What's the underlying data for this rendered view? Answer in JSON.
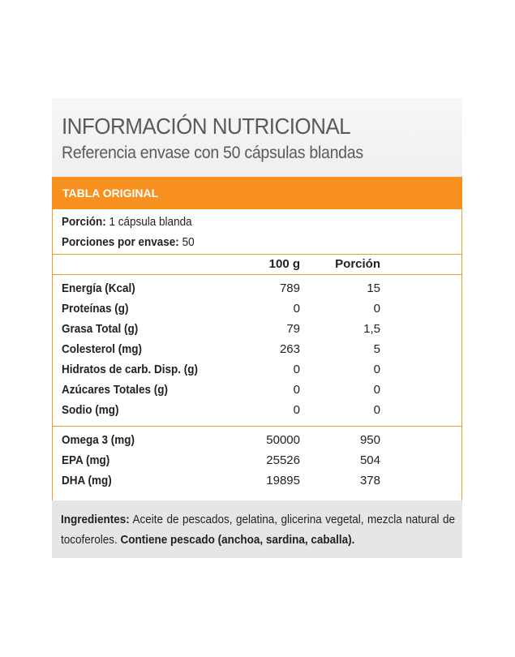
{
  "header": {
    "title": "INFORMACIÓN NUTRICIONAL",
    "subtitle": "Referencia envase con 50 cápsulas blandas"
  },
  "table": {
    "tab_label": "TABLA ORIGINAL",
    "portion_label": "Porción:",
    "portion_value": " 1 cápsula blanda",
    "servings_label": "Porciones por envase:",
    "servings_value": " 50",
    "col_100g": "100 g",
    "col_portion": "Porción",
    "rows": [
      {
        "name": "Energía (Kcal)",
        "v100": "789",
        "vpor": "15"
      },
      {
        "name": "Proteínas (g)",
        "v100": "0",
        "vpor": "0"
      },
      {
        "name": "Grasa Total (g)",
        "v100": "79",
        "vpor": "1,5"
      },
      {
        "name": "Colesterol (mg)",
        "v100": "263",
        "vpor": "5"
      },
      {
        "name": "Hidratos de carb. Disp. (g)",
        "v100": "0",
        "vpor": "0"
      },
      {
        "name": "Azúcares Totales (g)",
        "v100": "0",
        "vpor": "0"
      },
      {
        "name": "Sodio (mg)",
        "v100": "0",
        "vpor": "0"
      }
    ],
    "omega_rows": [
      {
        "name": "Omega 3 (mg)",
        "v100": "50000",
        "vpor": "950"
      },
      {
        "name": "EPA (mg)",
        "v100": "25526",
        "vpor": "504"
      },
      {
        "name": "DHA (mg)",
        "v100": "19895",
        "vpor": "378"
      }
    ]
  },
  "ingredients": {
    "label": "Ingredientes:",
    "text": " Aceite de pescados, gelatina, glicerina vegetal, mezcla natural de tocoferoles. ",
    "warning": "Contiene pescado (anchoa,  sardina, caballa)."
  },
  "colors": {
    "accent": "#f7901e",
    "border": "#f39a2b",
    "footer_bg": "#e6e6e6"
  }
}
